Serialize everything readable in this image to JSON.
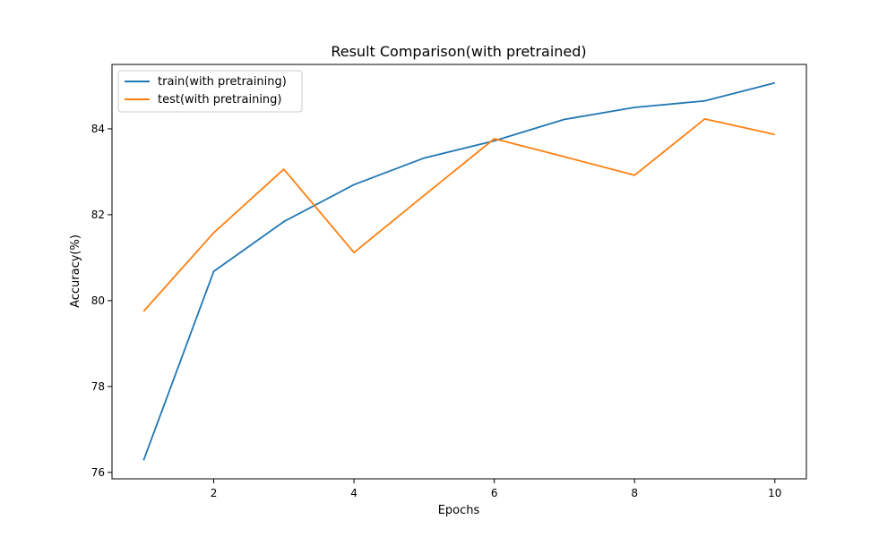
{
  "chart_data": {
    "type": "line",
    "title": "Result Comparison(with pretrained)",
    "xlabel": "Epochs",
    "ylabel": "Accuracy(%)",
    "x": [
      1,
      2,
      3,
      4,
      5,
      6,
      7,
      8,
      9,
      10
    ],
    "xlim": [
      0.55,
      10.45
    ],
    "ylim": [
      75.85,
      85.5
    ],
    "xticks": [
      2,
      4,
      6,
      8,
      10
    ],
    "yticks": [
      76,
      78,
      80,
      82,
      84
    ],
    "grid": false,
    "legend_position": "top-left",
    "series": [
      {
        "name": "train(with pretraining)",
        "color": "#1f77b4",
        "values": [
          76.28,
          80.68,
          81.84,
          82.7,
          83.32,
          83.72,
          84.22,
          84.5,
          84.65,
          85.07
        ]
      },
      {
        "name": "test(with pretraining)",
        "color": "#ff7f0e",
        "values": [
          79.75,
          81.58,
          83.06,
          81.12,
          82.45,
          83.77,
          83.35,
          82.92,
          84.23,
          83.87
        ]
      }
    ]
  }
}
